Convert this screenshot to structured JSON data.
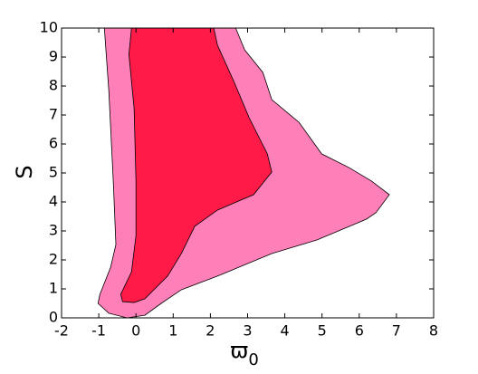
{
  "chart_data": {
    "type": "contour",
    "xlabel": {
      "text": "ϖ",
      "subscript": "0"
    },
    "ylabel": "S",
    "xlim": [
      -2,
      8
    ],
    "ylim": [
      0,
      10
    ],
    "xticks": [
      -2,
      -1,
      0,
      1,
      2,
      3,
      4,
      5,
      6,
      7,
      8
    ],
    "yticks": [
      0,
      1,
      2,
      3,
      4,
      5,
      6,
      7,
      8,
      9,
      10
    ],
    "series": [
      {
        "color": "#ff80b8",
        "x": [
          -0.85,
          -0.73,
          -0.61,
          -0.54,
          -0.68,
          -0.97,
          -1.02,
          -0.73,
          -0.24,
          0.24,
          0.68,
          1.22,
          2.19,
          3.65,
          4.87,
          6.2,
          6.45,
          6.81,
          6.33,
          5.72,
          4.99,
          4.38,
          3.65,
          3.41,
          2.92,
          2.68
        ],
        "y": [
          10,
          7.84,
          4.72,
          2.53,
          1.75,
          0.81,
          0.5,
          0.16,
          0,
          0.09,
          0.5,
          0.97,
          1.44,
          2.22,
          2.69,
          3.41,
          3.63,
          4.25,
          4.72,
          5.19,
          5.66,
          6.75,
          7.53,
          8.47,
          9.25,
          10
        ]
      },
      {
        "color": "#ff1a48",
        "x": [
          -0.12,
          -0.19,
          -0.05,
          0,
          0,
          -0.12,
          -0.41,
          -0.36,
          -0.05,
          0.24,
          0.85,
          1.22,
          1.58,
          2.19,
          3.16,
          3.65,
          3.53,
          3.04,
          2.63,
          2.19,
          2.09
        ],
        "y": [
          10,
          9.09,
          7.22,
          4.72,
          2.84,
          1.59,
          0.81,
          0.56,
          0.53,
          0.66,
          1.44,
          2.22,
          3.16,
          3.72,
          4.25,
          5.03,
          5.66,
          6.91,
          8.16,
          9.41,
          10
        ]
      }
    ]
  }
}
